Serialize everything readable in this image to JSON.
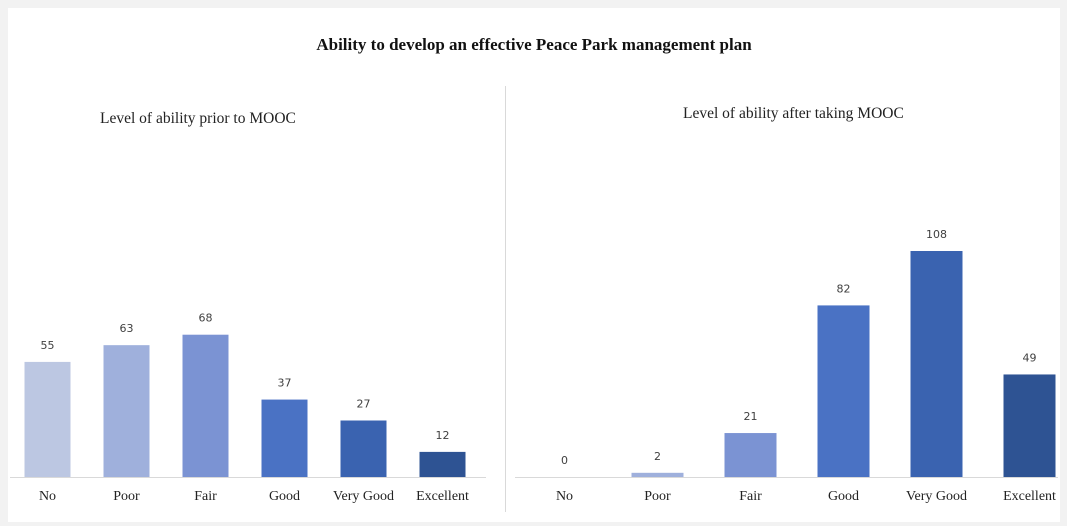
{
  "title": "Ability to develop an effective Peace Park management plan",
  "chart_data": [
    {
      "type": "bar",
      "title": "Level of ability prior to MOOC",
      "categories": [
        "No",
        "Poor",
        "Fair",
        "Good",
        "Very Good",
        "Excellent"
      ],
      "values": [
        55,
        63,
        68,
        37,
        27,
        12
      ],
      "colors": [
        "#bcc7e2",
        "#9fb0dc",
        "#7b93d3",
        "#4a72c4",
        "#3a63b0",
        "#2e5393"
      ],
      "data_labels": true,
      "ylim": [
        0,
        108
      ]
    },
    {
      "type": "bar",
      "title": "Level of ability after taking MOOC",
      "categories": [
        "No",
        "Poor",
        "Fair",
        "Good",
        "Very Good",
        "Excellent"
      ],
      "values": [
        0,
        2,
        21,
        82,
        108,
        49
      ],
      "colors": [
        "#bcc7e2",
        "#9fb0dc",
        "#7b93d3",
        "#4a72c4",
        "#3a63b0",
        "#2e5393"
      ],
      "data_labels": true,
      "ylim": [
        0,
        108
      ]
    }
  ]
}
